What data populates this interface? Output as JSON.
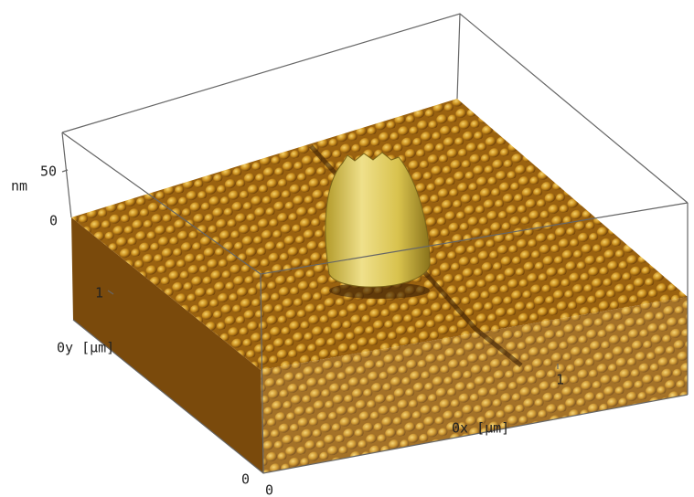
{
  "z_axis": {
    "label": "nm",
    "ticks": [
      0,
      50
    ]
  },
  "y_axis": {
    "label": "0y [μm]",
    "ticks": [
      0,
      1
    ]
  },
  "x_axis": {
    "label": "0x [μm]",
    "ticks": [
      0,
      1
    ]
  }
}
